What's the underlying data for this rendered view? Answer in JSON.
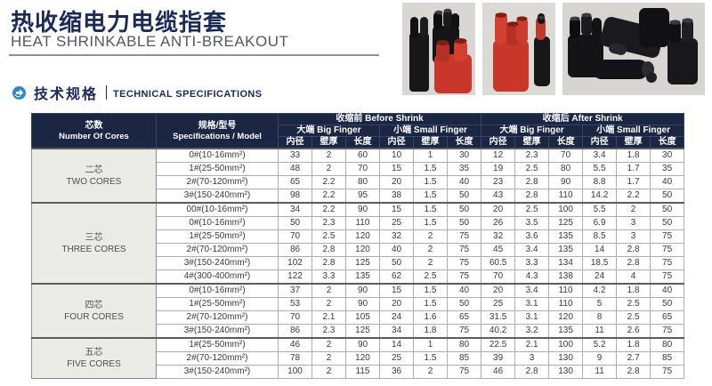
{
  "header": {
    "title_cn": "热收缩电力电缆指套",
    "title_en": "HEAT SHRINKABLE ANTI-BREAKOUT"
  },
  "section": {
    "title_cn": "技术规格",
    "title_en": "TECHNICAL SPECIFICATIONS"
  },
  "colors": {
    "title_navy": "#1c2a56",
    "table_header_bg": "#1b2642",
    "cores_cell_bg": "#eaeae6",
    "accent_icon_blue": "#2f86c8",
    "product_red": "#c8372a",
    "product_black": "#17171a"
  },
  "icons": {
    "section_bullet": "arrow-in-circle-icon"
  },
  "table": {
    "headers": {
      "cores_cn": "芯数",
      "cores_en": "Number Of Cores",
      "spec_cn": "规格/型号",
      "spec_en": "Specifications / Model",
      "before": "收缩前 Before Shrink",
      "after": "收缩后 After Shrink",
      "big": "大端 Big Finger",
      "small": "小端 Small Finger",
      "subheaders": [
        "内径",
        "壁厚",
        "长度"
      ]
    },
    "groups": [
      {
        "cores_cn": "二芯",
        "cores_en": "TWO CORES",
        "rows": [
          {
            "model": "0#(10-16mm²)",
            "values": [
              "33",
              "2",
              "60",
              "10",
              "1",
              "30",
              "12",
              "2.3",
              "70",
              "3.4",
              "1.8",
              "30"
            ]
          },
          {
            "model": "1#(25-50mm²)",
            "values": [
              "48",
              "2",
              "70",
              "15",
              "1.5",
              "35",
              "19",
              "2.5",
              "80",
              "5.5",
              "1.7",
              "35"
            ]
          },
          {
            "model": "2#(70-120mm²)",
            "values": [
              "65",
              "2.2",
              "80",
              "20",
              "1.5",
              "40",
              "23",
              "2.8",
              "90",
              "8.8",
              "1.7",
              "40"
            ]
          },
          {
            "model": "3#(150-240mm²)",
            "values": [
              "98",
              "2.2",
              "95",
              "38",
              "1.5",
              "50",
              "43",
              "2.8",
              "110",
              "14.2",
              "2.2",
              "50"
            ]
          }
        ]
      },
      {
        "cores_cn": "三芯",
        "cores_en": "THREE CORES",
        "rows": [
          {
            "model": "00#(10-16mm²)",
            "values": [
              "34",
              "2.2",
              "90",
              "15",
              "1.5",
              "50",
              "20",
              "2.5",
              "100",
              "5.5",
              "2",
              "50"
            ]
          },
          {
            "model": "0#(10-16mm²)",
            "values": [
              "50",
              "2.3",
              "110",
              "25",
              "1.5",
              "50",
              "26",
              "3.5",
              "125",
              "6.9",
              "3",
              "50"
            ]
          },
          {
            "model": "1#(25-50mm²)",
            "values": [
              "70",
              "2.5",
              "120",
              "32",
              "2",
              "75",
              "32",
              "3.6",
              "135",
              "8.5",
              "3",
              "75"
            ]
          },
          {
            "model": "2#(70-120mm²)",
            "values": [
              "86",
              "2.8",
              "120",
              "40",
              "2",
              "75",
              "45",
              "3.4",
              "135",
              "14",
              "2.8",
              "75"
            ]
          },
          {
            "model": "3#(150-240mm²)",
            "values": [
              "102",
              "2.8",
              "125",
              "50",
              "2",
              "75",
              "60.5",
              "3.3",
              "134",
              "18.5",
              "2.8",
              "75"
            ]
          },
          {
            "model": "4#(300-400mm²)",
            "values": [
              "122",
              "3.3",
              "135",
              "62",
              "2.5",
              "75",
              "70",
              "4.3",
              "138",
              "24",
              "4",
              "75"
            ]
          }
        ]
      },
      {
        "cores_cn": "四芯",
        "cores_en": "FOUR CORES",
        "rows": [
          {
            "model": "0#(10-16mm²)",
            "values": [
              "37",
              "2",
              "90",
              "15",
              "1.5",
              "40",
              "20",
              "3.4",
              "110",
              "4.2",
              "1.8",
              "40"
            ]
          },
          {
            "model": "1#(25-50mm²)",
            "values": [
              "53",
              "2",
              "90",
              "20",
              "1.5",
              "50",
              "25",
              "3.1",
              "110",
              "5",
              "2.5",
              "50"
            ]
          },
          {
            "model": "2#(70-120mm²)",
            "values": [
              "70",
              "2.1",
              "105",
              "24",
              "1.6",
              "65",
              "31.5",
              "3.1",
              "120",
              "8",
              "2.5",
              "65"
            ]
          },
          {
            "model": "3#(150-240mm²)",
            "values": [
              "86",
              "2.3",
              "125",
              "34",
              "1.8",
              "75",
              "40.2",
              "3.2",
              "135",
              "11",
              "2.6",
              "75"
            ]
          }
        ]
      },
      {
        "cores_cn": "五芯",
        "cores_en": "FIVE CORES",
        "rows": [
          {
            "model": "1#(25-50mm²)",
            "values": [
              "46",
              "2",
              "90",
              "14",
              "1",
              "80",
              "22.5",
              "2.1",
              "100",
              "5.2",
              "1.8",
              "80"
            ]
          },
          {
            "model": "2#(70-120mm²)",
            "values": [
              "78",
              "2",
              "120",
              "25",
              "1.5",
              "85",
              "39",
              "3",
              "130",
              "9",
              "2.7",
              "85"
            ]
          },
          {
            "model": "3#(150-240mm²)",
            "values": [
              "100",
              "2",
              "115",
              "36",
              "2",
              "75",
              "46",
              "2.8",
              "130",
              "11",
              "2.8",
              "75"
            ]
          }
        ]
      }
    ]
  }
}
